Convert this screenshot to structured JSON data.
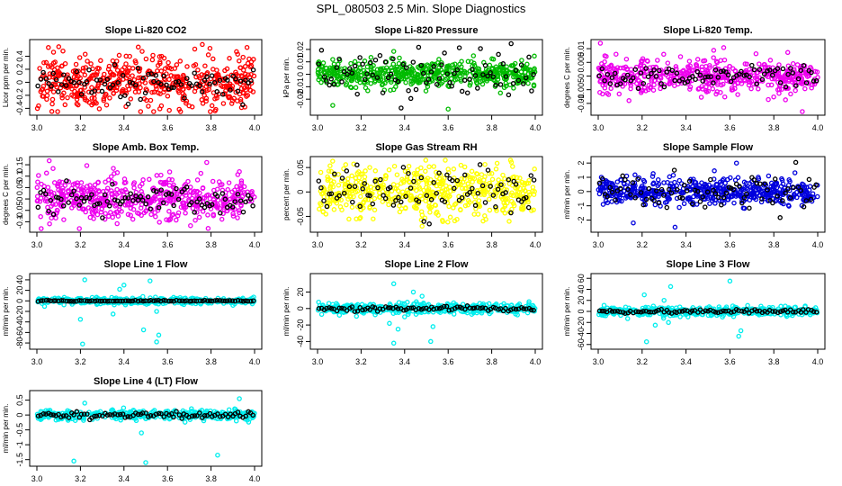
{
  "figure_title": "SPL_080503  2.5 Min. Slope Diagnostics",
  "colors": {
    "reference": "#000000"
  },
  "chart_data": [
    {
      "type": "scatter",
      "title": "Slope Li-820 CO2",
      "ylabel": "Licor ppm per min.",
      "color": "#ff0000",
      "xlim": [
        3.0,
        4.0
      ],
      "xticks": [
        3.0,
        3.2,
        3.4,
        3.6,
        3.8,
        4.0
      ],
      "ylim": [
        -0.45,
        0.6
      ],
      "yticks": [
        -0.4,
        -0.2,
        0.0,
        0.2,
        0.4
      ],
      "spread": 0.2,
      "n": 520,
      "outliers": [
        [
          3.76,
          0.58
        ],
        [
          3.66,
          -0.45
        ],
        [
          3.12,
          0.48
        ]
      ],
      "reference_series": {
        "spread": 0.13,
        "n": 85
      }
    },
    {
      "type": "scatter",
      "title": "Slope Li-820 Pressure",
      "ylabel": "kPa per min.",
      "color": "#00bb00",
      "xlim": [
        3.0,
        4.0
      ],
      "xticks": [
        3.0,
        3.2,
        3.4,
        3.6,
        3.8,
        4.0
      ],
      "ylim": [
        -0.03,
        0.025
      ],
      "yticks": [
        -0.02,
        -0.01,
        0.0,
        0.01,
        0.02
      ],
      "spread": 0.005,
      "n": 520,
      "outliers": [
        [
          3.6,
          -0.028
        ],
        [
          3.84,
          -0.015
        ],
        [
          3.07,
          -0.025
        ]
      ],
      "reference_series": {
        "spread": 0.01,
        "n": 85
      }
    },
    {
      "type": "scatter",
      "title": "Slope Li-820 Temp.",
      "ylabel": "degrees C per min.",
      "color": "#ee00ee",
      "xlim": [
        3.0,
        4.0
      ],
      "xticks": [
        3.0,
        3.2,
        3.4,
        3.6,
        3.8,
        4.0
      ],
      "ylim": [
        -0.013,
        0.012
      ],
      "yticks": [
        -0.01,
        -0.005,
        0.0,
        0.005,
        0.01
      ],
      "spread": 0.003,
      "n": 520,
      "outliers": [
        [
          3.01,
          0.012
        ],
        [
          3.93,
          -0.013
        ],
        [
          3.14,
          -0.009
        ]
      ],
      "reference_series": {
        "spread": 0.002,
        "n": 85
      }
    },
    {
      "type": "scatter",
      "title": "Slope Amb. Box Temp.",
      "ylabel": "degrees C per min.",
      "color": "#ee00ee",
      "xlim": [
        3.0,
        4.0
      ],
      "xticks": [
        3.0,
        3.2,
        3.4,
        3.6,
        3.8,
        4.0
      ],
      "ylim": [
        -0.13,
        0.17
      ],
      "yticks": [
        -0.1,
        -0.05,
        0.0,
        0.05,
        0.1,
        0.15
      ],
      "spread": 0.05,
      "n": 520,
      "outliers": [
        [
          3.78,
          0.16
        ],
        [
          3.02,
          -0.13
        ],
        [
          3.93,
          0.12
        ]
      ],
      "reference_series": {
        "spread": 0.03,
        "n": 85
      }
    },
    {
      "type": "scatter",
      "title": "Slope Gas Stream RH",
      "ylabel": "percent per min.",
      "color": "#ffff00",
      "xlim": [
        3.0,
        4.0
      ],
      "xticks": [
        3.0,
        3.2,
        3.4,
        3.6,
        3.8,
        4.0
      ],
      "ylim": [
        -0.075,
        0.065
      ],
      "yticks": [
        -0.05,
        0.0,
        0.05
      ],
      "spread": 0.025,
      "n": 520,
      "outliers": [
        [
          3.48,
          -0.07
        ],
        [
          3.88,
          -0.06
        ]
      ],
      "reference_series": {
        "spread": 0.025,
        "n": 85
      }
    },
    {
      "type": "scatter",
      "title": "Slope Sample Flow",
      "ylabel": "ml/min per min.",
      "color": "#0000dd",
      "xlim": [
        3.0,
        4.0
      ],
      "xticks": [
        3.0,
        3.2,
        3.4,
        3.6,
        3.8,
        4.0
      ],
      "ylim": [
        -2.6,
        2.2
      ],
      "yticks": [
        -2,
        -1,
        0,
        1,
        2
      ],
      "spread": 0.45,
      "n": 520,
      "outliers": [
        [
          3.63,
          2.0
        ],
        [
          3.35,
          -2.5
        ],
        [
          3.16,
          -2.2
        ]
      ],
      "reference_series": {
        "spread": 0.6,
        "n": 85
      }
    },
    {
      "type": "scatter",
      "title": "Slope Line 1 Flow",
      "ylabel": "ml/min per min.",
      "color": "#00eeee",
      "xlim": [
        3.0,
        4.0
      ],
      "xticks": [
        3.0,
        3.2,
        3.4,
        3.6,
        3.8,
        4.0
      ],
      "ylim": [
        -85,
        45
      ],
      "yticks": [
        -80,
        -60,
        -40,
        -20,
        0,
        20,
        40
      ],
      "spread": 3,
      "n": 420,
      "outliers": [
        [
          3.21,
          -82
        ],
        [
          3.55,
          -78
        ],
        [
          3.49,
          -55
        ],
        [
          3.2,
          -35
        ],
        [
          3.56,
          -65
        ],
        [
          3.4,
          30
        ],
        [
          3.52,
          38
        ],
        [
          3.22,
          40
        ],
        [
          3.35,
          -25
        ],
        [
          3.55,
          -20
        ],
        [
          3.38,
          22
        ]
      ],
      "reference_series": {
        "spread": 0.5,
        "n": 85
      }
    },
    {
      "type": "scatter",
      "title": "Slope Line 2 Flow",
      "ylabel": "ml/min per min.",
      "color": "#00eeee",
      "xlim": [
        3.0,
        4.0
      ],
      "xticks": [
        3.0,
        3.2,
        3.4,
        3.6,
        3.8,
        4.0
      ],
      "ylim": [
        -45,
        38
      ],
      "yticks": [
        -40,
        -20,
        0,
        20
      ],
      "spread": 3,
      "n": 420,
      "outliers": [
        [
          3.35,
          -42
        ],
        [
          3.52,
          -40
        ],
        [
          3.35,
          30
        ],
        [
          3.37,
          -25
        ],
        [
          3.44,
          20
        ],
        [
          3.48,
          15
        ],
        [
          3.33,
          -18
        ],
        [
          3.53,
          -22
        ],
        [
          3.4,
          -10
        ]
      ],
      "reference_series": {
        "spread": 1.5,
        "n": 85
      }
    },
    {
      "type": "scatter",
      "title": "Slope Line 3 Flow",
      "ylabel": "ml/min per min.",
      "color": "#00eeee",
      "xlim": [
        3.0,
        4.0
      ],
      "xticks": [
        3.0,
        3.2,
        3.4,
        3.6,
        3.8,
        4.0
      ],
      "ylim": [
        -62,
        62
      ],
      "yticks": [
        -60,
        -40,
        -20,
        0,
        20,
        40,
        60
      ],
      "spread": 4,
      "n": 420,
      "outliers": [
        [
          3.22,
          -55
        ],
        [
          3.6,
          55
        ],
        [
          3.33,
          45
        ],
        [
          3.65,
          -35
        ],
        [
          3.21,
          30
        ],
        [
          3.26,
          -25
        ],
        [
          3.32,
          -20
        ],
        [
          3.64,
          -45
        ],
        [
          3.3,
          20
        ]
      ],
      "reference_series": {
        "spread": 2,
        "n": 85
      }
    },
    {
      "type": "scatter",
      "title": "Slope Line 4 (LT) Flow",
      "ylabel": "ml/min per min.",
      "color": "#00eeee",
      "xlim": [
        3.0,
        4.0
      ],
      "xticks": [
        3.0,
        3.2,
        3.4,
        3.6,
        3.8,
        4.0
      ],
      "ylim": [
        -1.6,
        0.7
      ],
      "yticks": [
        -1.5,
        -1.0,
        -0.5,
        0.0,
        0.5
      ],
      "spread": 0.08,
      "n": 420,
      "outliers": [
        [
          3.17,
          -1.55
        ],
        [
          3.5,
          -1.6
        ],
        [
          3.83,
          -1.35
        ],
        [
          3.48,
          -0.6
        ],
        [
          3.93,
          0.55
        ],
        [
          3.22,
          0.4
        ]
      ],
      "reference_series": {
        "spread": 0.06,
        "n": 85
      }
    }
  ]
}
